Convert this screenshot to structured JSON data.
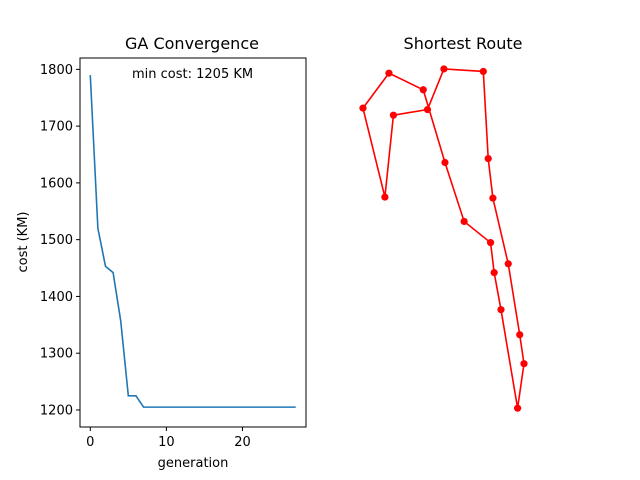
{
  "chart_data": [
    {
      "type": "line",
      "title": "GA Convergence",
      "xlabel": "generation",
      "ylabel": "cost (KM)",
      "annotation": "min cost: 1205 KM",
      "xlim": [
        -1.35,
        28.35
      ],
      "ylim": [
        1170,
        1820
      ],
      "xticks": [
        0,
        10,
        20
      ],
      "yticks": [
        1200,
        1300,
        1400,
        1500,
        1600,
        1700,
        1800
      ],
      "line_color": "#1f77b4",
      "series": [
        {
          "x": [
            0,
            1,
            2,
            3,
            4,
            5,
            6,
            7,
            8,
            9,
            10,
            11,
            12,
            13,
            14,
            15,
            16,
            17,
            18,
            19,
            20,
            21,
            22,
            23,
            24,
            25,
            26,
            27
          ],
          "values": [
            1790,
            1520,
            1453,
            1442,
            1357,
            1225,
            1225,
            1205,
            1205,
            1205,
            1205,
            1205,
            1205,
            1205,
            1205,
            1205,
            1205,
            1205,
            1205,
            1205,
            1205,
            1205,
            1205,
            1205,
            1205,
            1205,
            1205,
            1205
          ]
        }
      ]
    },
    {
      "type": "line",
      "title": "Shortest Route",
      "axes_visible": false,
      "xlim": [
        0,
        1
      ],
      "ylim": [
        0,
        1
      ],
      "route_color": "#ff0000",
      "marker": "circle",
      "series": [
        {
          "x": [
            0.028,
            0.131,
            0.171,
            0.331,
            0.408,
            0.593,
            0.616,
            0.638,
            0.71,
            0.764,
            0.784,
            0.754,
            0.676,
            0.644,
            0.627,
            0.503,
            0.413,
            0.311,
            0.15,
            0.028
          ],
          "values": [
            0.858,
            0.606,
            0.838,
            0.854,
            0.969,
            0.962,
            0.715,
            0.603,
            0.417,
            0.216,
            0.134,
            0.008,
            0.287,
            0.392,
            0.477,
            0.537,
            0.704,
            0.91,
            0.957,
            0.858
          ]
        }
      ]
    }
  ]
}
